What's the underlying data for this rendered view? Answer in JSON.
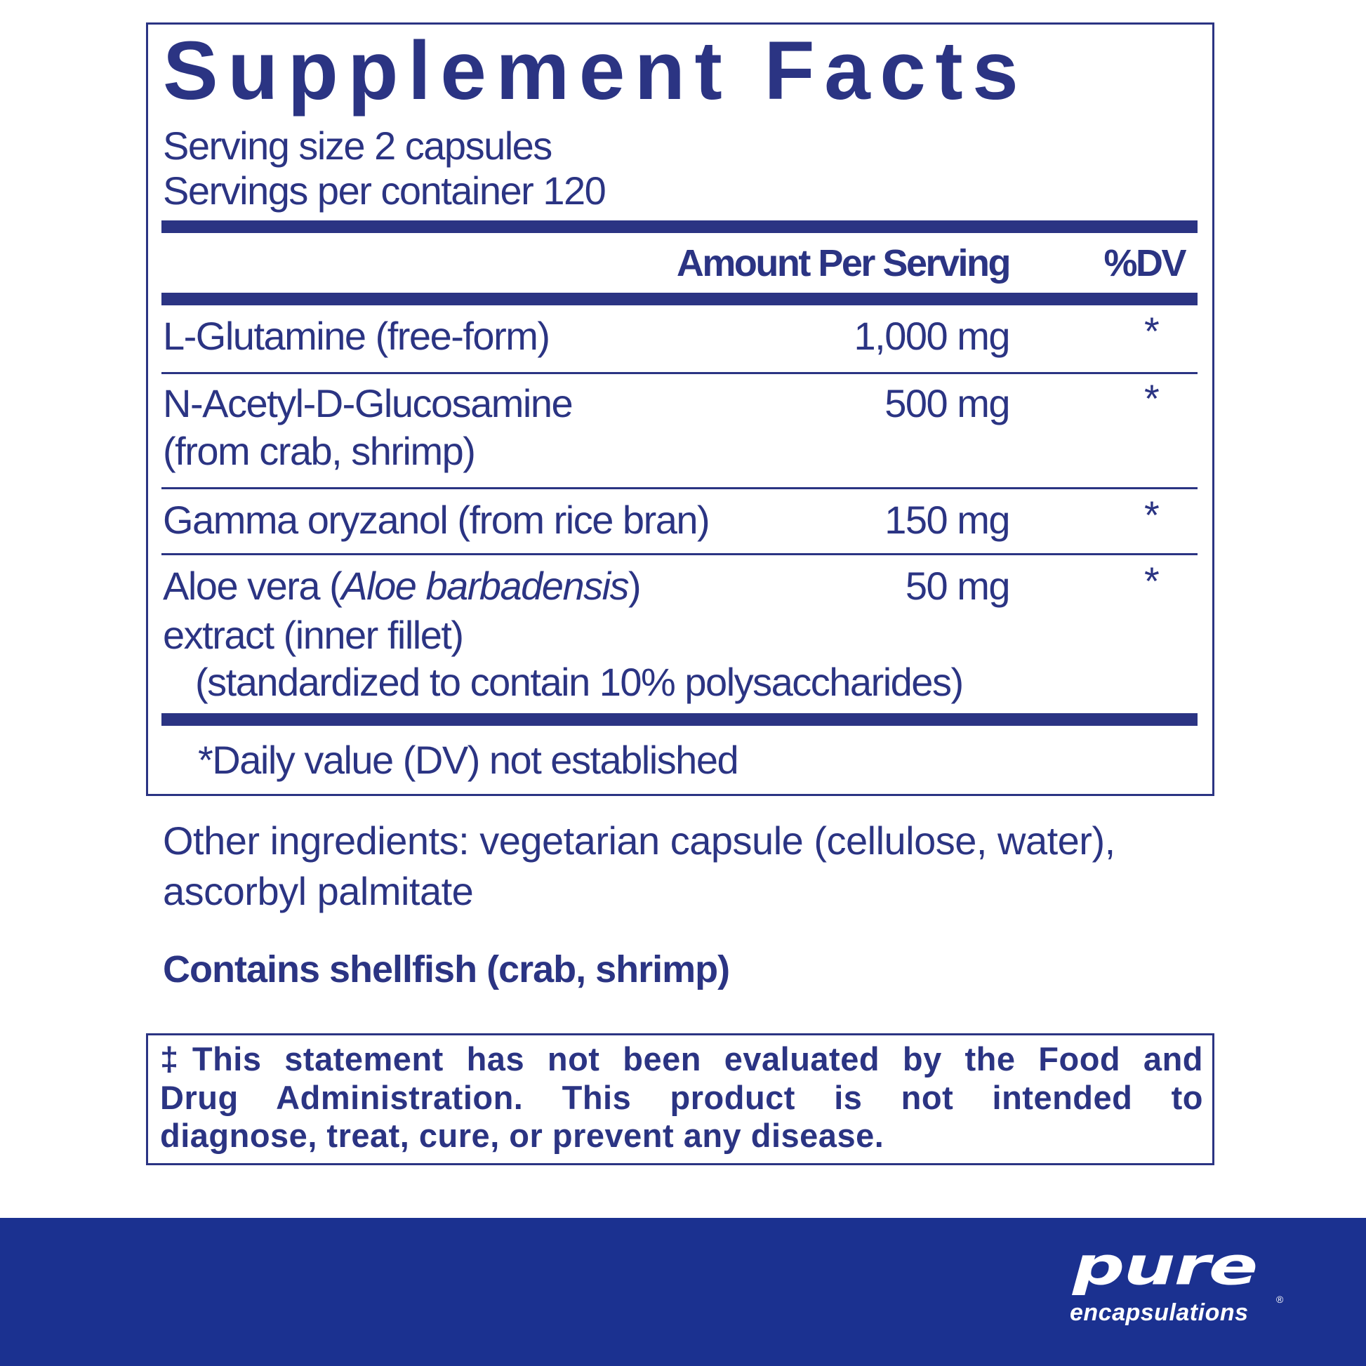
{
  "label": {
    "title": "Supplement Facts",
    "serving_size": "Serving size  2 capsules",
    "servings_per_container": "Servings per container  120",
    "header_amount": "Amount Per Serving",
    "header_dv": "%DV",
    "rows": [
      {
        "name_lines": [
          "L-Glutamine (free-form)"
        ],
        "amount": "1,000 mg",
        "dv": "*"
      },
      {
        "name_lines": [
          "N-Acetyl-D-Glucosamine",
          "(from crab, shrimp)"
        ],
        "amount": "500 mg",
        "dv": "*"
      },
      {
        "name_lines": [
          "Gamma oryzanol (from rice bran)"
        ],
        "amount": "150 mg",
        "dv": "*"
      },
      {
        "name_prefix": "Aloe vera (",
        "name_italic": "Aloe barbadensis",
        "name_suffix": ")",
        "name_lines": [
          "extract (inner fillet)",
          "(standardized to contain 10% polysaccharides)"
        ],
        "amount": "50 mg",
        "dv": "*"
      }
    ],
    "footnote": "*Daily value (DV) not established"
  },
  "other_ingredients": [
    "Other ingredients: vegetarian capsule (cellulose, water),",
    "ascorbyl palmitate"
  ],
  "allergen": "Contains shellfish (crab, shrimp)",
  "disclaimer": [
    "‡This statement has not been evaluated by the Food and",
    "Drug Administration. This product is not intended to",
    "diagnose, treat, cure, or prevent any disease."
  ],
  "brand": {
    "name": "pure",
    "sub": "encapsulations",
    "registered": "®",
    "band_color": "#1b3190"
  },
  "colors": {
    "text": "#2b3483"
  }
}
